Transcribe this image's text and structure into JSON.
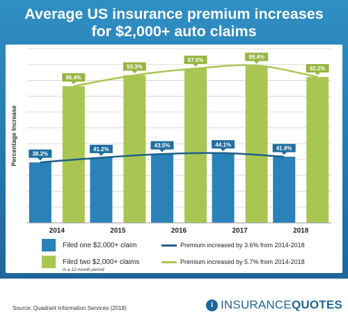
{
  "title": {
    "line1": "Average US insurance premium increases",
    "line2": "for $2,000+ auto claims"
  },
  "chart_data": {
    "type": "bar",
    "ylabel": "Percentage Increase",
    "xlabel": "",
    "ylim": [
      0,
      110
    ],
    "grid": true,
    "categories": [
      "2014",
      "2015",
      "2016",
      "2017",
      "2018"
    ],
    "series": [
      {
        "name": "Filed one $2,000+ claim",
        "values": [
          38.2,
          41.2,
          43.5,
          44.1,
          41.8
        ],
        "color": "#2a82b9"
      },
      {
        "name": "Filed two $2,000+ claims",
        "values": [
          86.4,
          93.3,
          97.5,
          99.4,
          92.2
        ],
        "color": "#a9c653"
      }
    ],
    "data_labels": [
      [
        "38.2%",
        "41.2%",
        "43.5%",
        "44.1%",
        "41.8%"
      ],
      [
        "86.4%",
        "93.3%",
        "97.5%",
        "99.4%",
        "92.2%"
      ]
    ],
    "trend_lines": [
      {
        "name": "Premium increased by 3.6% from 2014-2018",
        "color": "#1e5f86"
      },
      {
        "name": "Premium increased by 5.7% from 2014-2018",
        "color": "#a9c653"
      }
    ]
  },
  "legend": {
    "one_claim": "Filed one $2,000+ claim",
    "two_claims": "Filed two $2,000+ claims",
    "note": "in a 12-month period",
    "trend_one": "Premium increased by 3.6% from 2014-2018",
    "trend_two": "Premium increased by 5.7% from 2014-2018"
  },
  "colors": {
    "header_blue": "#2779ad",
    "bar_blue": "#2a82b9",
    "bar_green": "#a9c653",
    "line_dark_blue": "#1e5f86"
  },
  "footer": {
    "source": "Source: Quadrant Information Services (2018)",
    "brand_icon": "insurancequotes-logo-icon",
    "brand_part1": "INSURANCE",
    "brand_part2": "QUOTES"
  }
}
